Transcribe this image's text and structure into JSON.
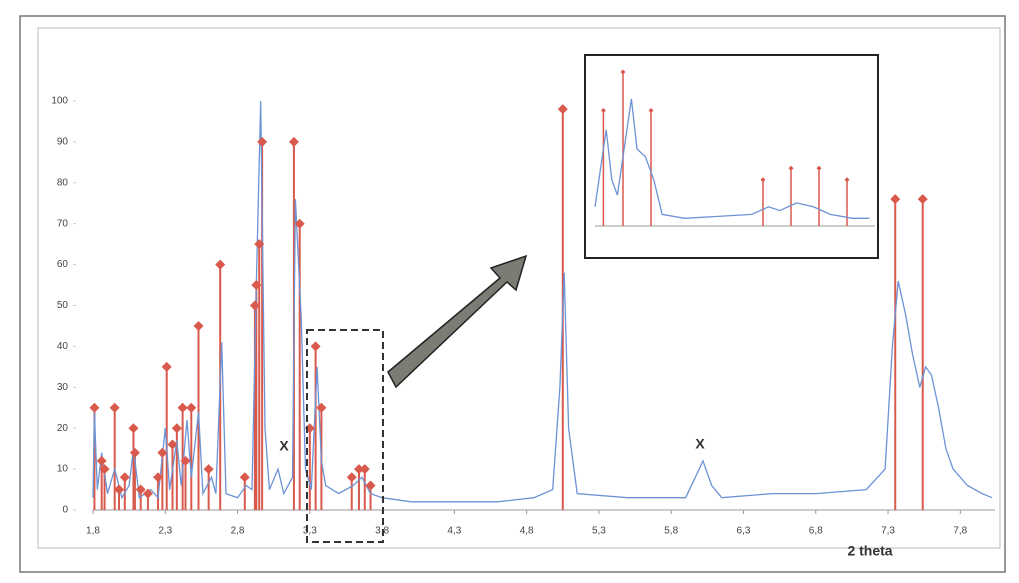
{
  "chart_data": [
    {
      "type": "line",
      "x_label": "2 theta",
      "annotations": [
        "X",
        "X"
      ],
      "xlim": [
        1.8,
        8.04
      ],
      "ylim": [
        0,
        100
      ],
      "xticks": [
        {
          "value": 1.8,
          "label": "1,8"
        },
        {
          "value": 2.3,
          "label": "2,3"
        },
        {
          "value": 2.8,
          "label": "2,8"
        },
        {
          "value": 3.3,
          "label": "3,3"
        },
        {
          "value": 3.8,
          "label": "3,8"
        },
        {
          "value": 4.3,
          "label": "4,3"
        },
        {
          "value": 4.8,
          "label": "4,8"
        },
        {
          "value": 5.3,
          "label": "5,3"
        },
        {
          "value": 5.8,
          "label": "5,8"
        },
        {
          "value": 6.3,
          "label": "6,3"
        },
        {
          "value": 6.8,
          "label": "6,8"
        },
        {
          "value": 7.3,
          "label": "7,3"
        },
        {
          "value": 7.8,
          "label": "7,8"
        }
      ],
      "yticks": [
        0,
        10,
        20,
        30,
        40,
        50,
        60,
        70,
        80,
        90,
        100
      ],
      "series": [
        {
          "color": "#6b93d6",
          "x": [
            1.8,
            1.81,
            1.83,
            1.86,
            1.9,
            1.95,
            2.0,
            2.05,
            2.08,
            2.12,
            2.2,
            2.25,
            2.3,
            2.33,
            2.38,
            2.41,
            2.45,
            2.48,
            2.53,
            2.56,
            2.62,
            2.65,
            2.69,
            2.72,
            2.8,
            2.86,
            2.9,
            2.93,
            2.96,
            2.99,
            3.02,
            3.08,
            3.12,
            3.18,
            3.2,
            3.24,
            3.27,
            3.31,
            3.35,
            3.38,
            3.41,
            3.5,
            3.6,
            3.66,
            3.72,
            3.8,
            4.0,
            4.3,
            4.6,
            4.85,
            4.98,
            5.03,
            5.06,
            5.09,
            5.15,
            5.5,
            5.9,
            5.98,
            6.02,
            6.08,
            6.15,
            6.5,
            6.8,
            7.15,
            7.28,
            7.33,
            7.37,
            7.42,
            7.47,
            7.52,
            7.56,
            7.6,
            7.65,
            7.7,
            7.75,
            7.85,
            7.95,
            8.02
          ],
          "values": [
            3,
            24,
            5,
            14,
            4,
            10,
            3,
            6,
            15,
            3,
            5,
            3,
            20,
            5,
            17,
            6,
            22,
            8,
            24,
            4,
            8,
            4,
            41,
            4,
            3,
            6,
            5,
            55,
            100,
            20,
            5,
            10,
            4,
            8,
            76,
            47,
            10,
            5,
            35,
            12,
            6,
            4,
            6,
            8,
            4,
            3,
            2,
            2,
            2,
            3,
            5,
            30,
            58,
            20,
            4,
            3,
            3,
            9,
            12,
            6,
            3,
            4,
            4,
            5,
            10,
            40,
            56,
            48,
            38,
            30,
            35,
            33,
            25,
            15,
            10,
            6,
            4,
            3
          ]
        }
      ],
      "sticks": {
        "color": "#d9594c",
        "x": [
          1.81,
          1.86,
          1.88,
          1.95,
          1.98,
          2.02,
          2.08,
          2.09,
          2.13,
          2.18,
          2.25,
          2.28,
          2.31,
          2.35,
          2.38,
          2.42,
          2.44,
          2.48,
          2.53,
          2.6,
          2.68,
          2.85,
          2.92,
          2.93,
          2.95,
          2.97,
          3.19,
          3.23,
          3.3,
          3.34,
          3.38,
          3.59,
          3.64,
          3.68,
          3.72,
          5.05,
          7.35,
          7.54
        ],
        "values": [
          25,
          12,
          10,
          25,
          5,
          8,
          20,
          14,
          5,
          4,
          8,
          14,
          35,
          16,
          20,
          25,
          12,
          25,
          45,
          10,
          60,
          8,
          50,
          55,
          65,
          90,
          90,
          70,
          20,
          40,
          25,
          8,
          10,
          10,
          6,
          98,
          76,
          76
        ]
      }
    },
    {
      "type": "line",
      "xlim": [
        3,
        8
      ],
      "ylim": [
        0,
        4
      ],
      "series": [
        {
          "color": "#6b93d6",
          "x": [
            3.0,
            3.1,
            3.2,
            3.3,
            3.4,
            3.55,
            3.65,
            3.75,
            3.9,
            4.05,
            4.2,
            4.6,
            5.2,
            5.8,
            6.1,
            6.3,
            6.6,
            6.9,
            7.2,
            7.6,
            7.9
          ],
          "values": [
            0.5,
            1.5,
            2.5,
            1.2,
            0.8,
            2.3,
            3.3,
            2,
            1.8,
            1.2,
            0.3,
            0.2,
            0.25,
            0.3,
            0.5,
            0.4,
            0.6,
            0.5,
            0.3,
            0.2,
            0.2
          ]
        }
      ],
      "sticks": {
        "color": "#d9594c",
        "x": [
          3.15,
          3.5,
          4.0,
          6.0,
          6.5,
          7.0,
          7.5
        ],
        "values": [
          3,
          4,
          3,
          1.2,
          1.5,
          1.5,
          1.2
        ]
      }
    }
  ]
}
